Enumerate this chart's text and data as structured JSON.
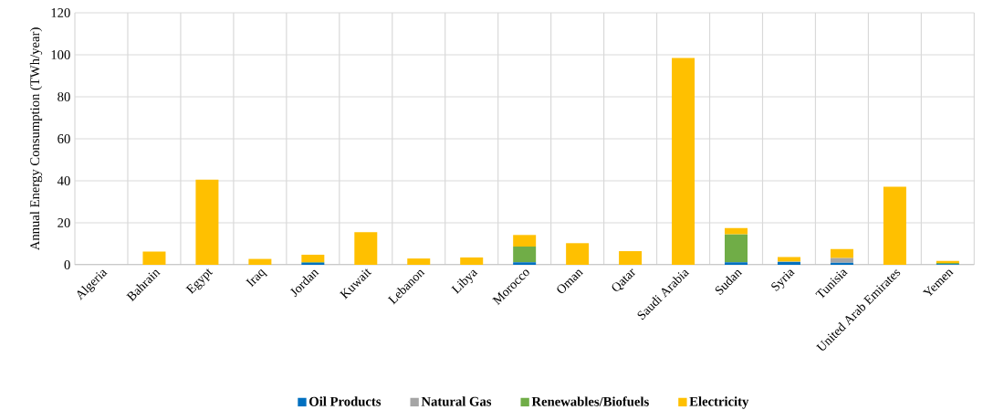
{
  "chart_data": {
    "type": "bar",
    "stacked": true,
    "ylabel": "Annual Energy Consumption (TWh/year)",
    "categories": [
      "Algeria",
      "Bahrain",
      "Egypt",
      "Iraq",
      "Jordan",
      "Kuwait",
      "Lebanon",
      "Libya",
      "Morocco",
      "Oman",
      "Qatar",
      "Saudi Arabia",
      "Sudan",
      "Syria",
      "Tunisia",
      "United Arab Emirates",
      "Yemen"
    ],
    "series": [
      {
        "name": "Oil Products",
        "color": "#0070c0",
        "values": [
          0,
          0,
          0,
          0,
          1.0,
          0,
          0,
          0,
          1.2,
          0,
          0,
          0,
          1.2,
          1.5,
          1.0,
          0,
          0.3
        ]
      },
      {
        "name": "Natural Gas",
        "color": "#a5a5a5",
        "values": [
          0,
          0,
          0,
          0,
          0,
          0,
          0,
          0,
          0,
          0,
          0,
          0,
          0,
          0,
          2.2,
          0,
          0
        ]
      },
      {
        "name": "Renewables/Biofuels",
        "color": "#70ad47",
        "values": [
          0,
          0,
          0,
          0,
          0.3,
          0,
          0,
          0,
          7.5,
          0,
          0,
          0,
          13.3,
          0,
          0,
          0,
          0.6
        ]
      },
      {
        "name": "Electricity",
        "color": "#ffc000",
        "values": [
          0,
          6.3,
          40.5,
          2.8,
          3.5,
          15.5,
          3.0,
          3.5,
          5.5,
          10.3,
          6.5,
          98.5,
          3.0,
          2.2,
          4.3,
          37.2,
          0.9
        ]
      }
    ],
    "ylim": [
      0,
      120
    ],
    "yticks": [
      0,
      20,
      40,
      60,
      80,
      100,
      120
    ],
    "grid": true,
    "legend": "bottom"
  }
}
